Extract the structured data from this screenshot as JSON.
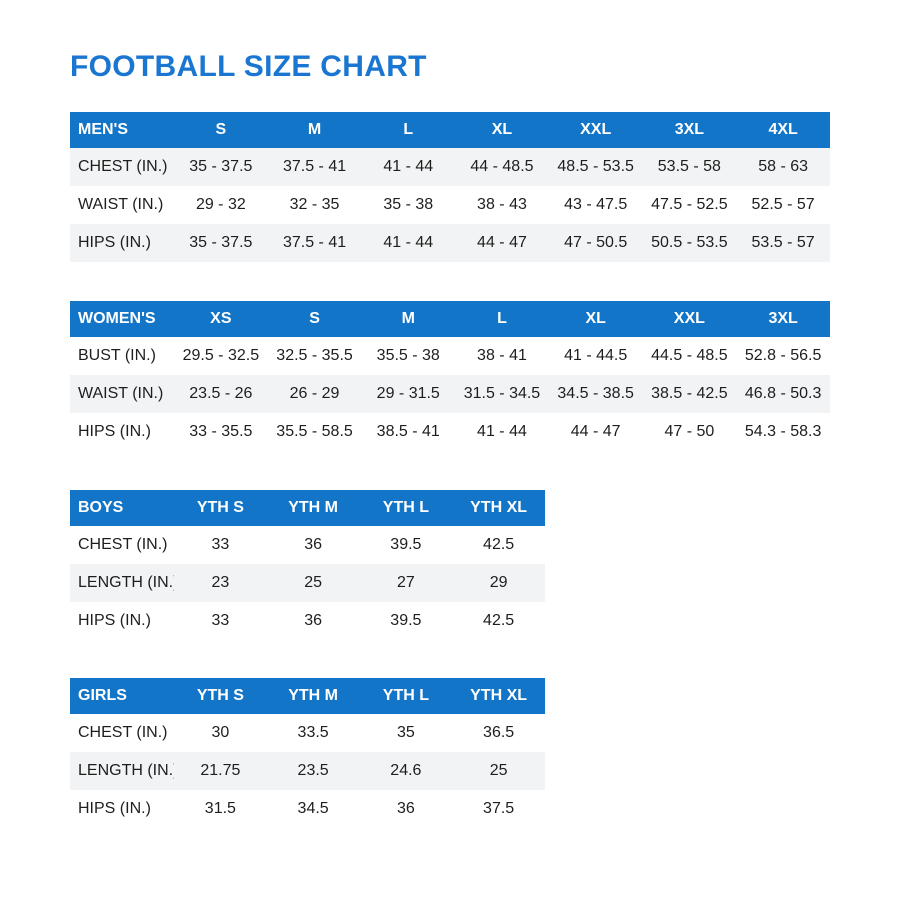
{
  "page": {
    "title": "FOOTBALL SIZE CHART"
  },
  "colors": {
    "header_bg": "#1375C8",
    "title": "#1B76D1",
    "row_alt_bg": "#F2F3F4",
    "text": "#1E1E1E",
    "header_text": "#FFFFFF"
  },
  "tables": [
    {
      "id": "mens",
      "label": "MEN'S",
      "columns": [
        "S",
        "M",
        "L",
        "XL",
        "XXL",
        "3XL",
        "4XL"
      ],
      "rows": [
        {
          "label": "CHEST (IN.)",
          "values": [
            "35 - 37.5",
            "37.5 - 41",
            "41 - 44",
            "44 - 48.5",
            "48.5 - 53.5",
            "53.5 - 58",
            "58 - 63"
          ]
        },
        {
          "label": "WAIST (IN.)",
          "values": [
            "29 - 32",
            "32 - 35",
            "35 - 38",
            "38 - 43",
            "43 - 47.5",
            "47.5 - 52.5",
            "52.5 - 57"
          ]
        },
        {
          "label": "HIPS (IN.)",
          "values": [
            "35 - 37.5",
            "37.5 - 41",
            "41 - 44",
            "44 - 47",
            "47 - 50.5",
            "50.5 - 53.5",
            "53.5 - 57"
          ]
        }
      ]
    },
    {
      "id": "womens",
      "label": "WOMEN'S",
      "columns": [
        "XS",
        "S",
        "M",
        "L",
        "XL",
        "XXL",
        "3XL"
      ],
      "rows": [
        {
          "label": "BUST (IN.)",
          "values": [
            "29.5 - 32.5",
            "32.5 - 35.5",
            "35.5 - 38",
            "38 - 41",
            "41 - 44.5",
            "44.5 - 48.5",
            "52.8 - 56.5"
          ]
        },
        {
          "label": "WAIST (IN.)",
          "values": [
            "23.5 - 26",
            "26 - 29",
            "29 - 31.5",
            "31.5 - 34.5",
            "34.5 - 38.5",
            "38.5 - 42.5",
            "46.8 - 50.3"
          ]
        },
        {
          "label": "HIPS (IN.)",
          "values": [
            "33 - 35.5",
            "35.5 - 58.5",
            "38.5 - 41",
            "41 - 44",
            "44 - 47",
            "47 - 50",
            "54.3 - 58.3"
          ]
        }
      ]
    },
    {
      "id": "boys",
      "label": "BOYS",
      "columns": [
        "YTH S",
        "YTH M",
        "YTH L",
        "YTH XL"
      ],
      "rows": [
        {
          "label": "CHEST (IN.)",
          "values": [
            "33",
            "36",
            "39.5",
            "42.5"
          ]
        },
        {
          "label": "LENGTH (IN.)",
          "values": [
            "23",
            "25",
            "27",
            "29"
          ]
        },
        {
          "label": "HIPS (IN.)",
          "values": [
            "33",
            "36",
            "39.5",
            "42.5"
          ]
        }
      ]
    },
    {
      "id": "girls",
      "label": "GIRLS",
      "columns": [
        "YTH S",
        "YTH M",
        "YTH L",
        "YTH XL"
      ],
      "rows": [
        {
          "label": "CHEST (IN.)",
          "values": [
            "30",
            "33.5",
            "35",
            "36.5"
          ]
        },
        {
          "label": "LENGTH (IN.)",
          "values": [
            "21.75",
            "23.5",
            "24.6",
            "25"
          ]
        },
        {
          "label": "HIPS (IN.)",
          "values": [
            "31.5",
            "34.5",
            "36",
            "37.5"
          ]
        }
      ]
    }
  ]
}
